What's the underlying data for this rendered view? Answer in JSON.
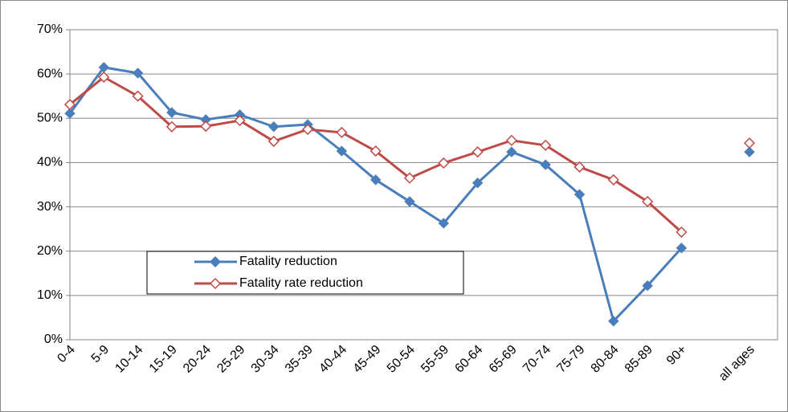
{
  "chart_data": {
    "type": "line",
    "categories": [
      "0-4",
      "5-9",
      "10-14",
      "15-19",
      "20-24",
      "25-29",
      "30-34",
      "35-39",
      "40-44",
      "45-49",
      "50-54",
      "55-59",
      "60-64",
      "65-69",
      "70-74",
      "75-79",
      "80-84",
      "85-89",
      "90+",
      null,
      "all ages"
    ],
    "series": [
      {
        "name": "Fatality reduction",
        "color": "#4a7ebb",
        "values": [
          51.1,
          61.5,
          60.2,
          51.3,
          49.7,
          50.8,
          48.1,
          48.6,
          42.6,
          36.1,
          31.2,
          26.3,
          35.4,
          42.4,
          39.5,
          32.8,
          4.2,
          12.2,
          20.7,
          null,
          42.4
        ]
      },
      {
        "name": "Fatality rate reduction",
        "color": "#be4b48",
        "values": [
          53.1,
          59.3,
          55.0,
          48.1,
          48.2,
          49.5,
          44.8,
          47.5,
          46.8,
          42.6,
          36.5,
          39.9,
          42.4,
          45.0,
          43.9,
          39.0,
          36.1,
          31.2,
          24.3,
          null,
          44.4
        ]
      }
    ],
    "ylim": [
      0,
      70
    ],
    "yticks": [
      {
        "value": 0,
        "label": "0%"
      },
      {
        "value": 10,
        "label": "10%"
      },
      {
        "value": 20,
        "label": "20%"
      },
      {
        "value": 30,
        "label": "30%"
      },
      {
        "value": 40,
        "label": "40%"
      },
      {
        "value": 50,
        "label": "50%"
      },
      {
        "value": 60,
        "label": "60%"
      },
      {
        "value": 70,
        "label": "70%"
      }
    ],
    "grid": true
  }
}
